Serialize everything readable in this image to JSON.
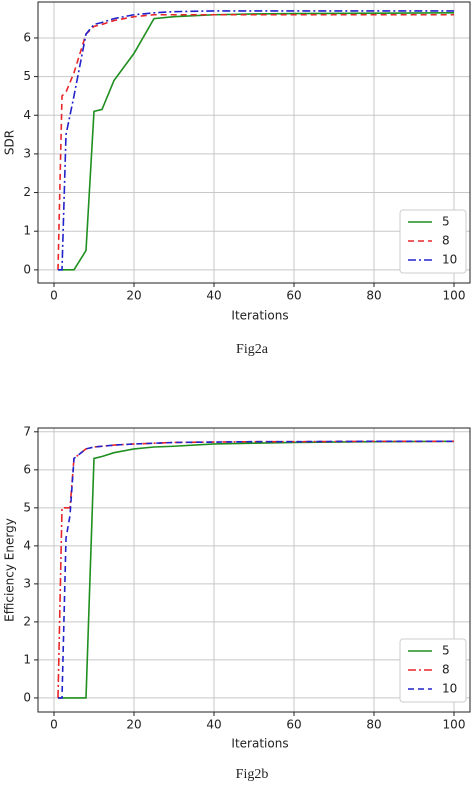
{
  "chart_data": [
    {
      "type": "line",
      "xlabel": "Iterations",
      "ylabel": "SDR",
      "caption": "Fig2a",
      "x": [
        1,
        2,
        3,
        5,
        8,
        10,
        12,
        15,
        20,
        25,
        30,
        40,
        50,
        60,
        80,
        100
      ],
      "series": [
        {
          "name": "5",
          "color": "#1f8f1f",
          "linestyle": "solid",
          "values": [
            0,
            0,
            0,
            0,
            0.5,
            4.1,
            4.15,
            4.9,
            5.6,
            6.5,
            6.55,
            6.6,
            6.62,
            6.63,
            6.64,
            6.65
          ]
        },
        {
          "name": "8",
          "color": "#e8262a",
          "linestyle": "dashed",
          "values": [
            0,
            4.5,
            4.6,
            5.1,
            6.1,
            6.3,
            6.35,
            6.45,
            6.55,
            6.6,
            6.6,
            6.6,
            6.6,
            6.6,
            6.6,
            6.6
          ]
        },
        {
          "name": "10",
          "color": "#2222cc",
          "linestyle": "dashdot",
          "values": [
            0,
            0,
            3.5,
            4.5,
            6.1,
            6.35,
            6.4,
            6.5,
            6.6,
            6.65,
            6.68,
            6.7,
            6.7,
            6.7,
            6.7,
            6.7
          ]
        }
      ],
      "xlim": [
        -4,
        104
      ],
      "xticks": [
        0,
        20,
        40,
        60,
        80,
        100
      ],
      "ylim": [
        -0.34,
        6.93
      ],
      "yticks": [
        0,
        1,
        2,
        3,
        4,
        5,
        6
      ],
      "grid": true,
      "legend": "lower right"
    },
    {
      "type": "line",
      "xlabel": "Iterations",
      "ylabel": "Efficiency Energy",
      "caption": "Fig2b",
      "x": [
        1,
        2,
        3,
        4,
        5,
        8,
        10,
        12,
        15,
        20,
        25,
        30,
        40,
        50,
        60,
        80,
        100
      ],
      "series": [
        {
          "name": "5",
          "color": "#1f8f1f",
          "linestyle": "solid",
          "values": [
            0,
            0,
            0,
            0,
            0,
            0,
            6.3,
            6.35,
            6.45,
            6.55,
            6.6,
            6.62,
            6.68,
            6.7,
            6.72,
            6.74,
            6.75
          ]
        },
        {
          "name": "8",
          "color": "#e8262a",
          "linestyle": "dashdot",
          "values": [
            0,
            5,
            5,
            5,
            6.3,
            6.55,
            6.6,
            6.62,
            6.65,
            6.68,
            6.7,
            6.72,
            6.73,
            6.74,
            6.74,
            6.75,
            6.75
          ]
        },
        {
          "name": "10",
          "color": "#2222cc",
          "linestyle": "dashed",
          "values": [
            0,
            0,
            4.2,
            4.8,
            6.3,
            6.55,
            6.6,
            6.62,
            6.65,
            6.68,
            6.7,
            6.72,
            6.73,
            6.74,
            6.74,
            6.75,
            6.75
          ]
        }
      ],
      "xlim": [
        -4,
        104
      ],
      "xticks": [
        0,
        20,
        40,
        60,
        80,
        100
      ],
      "ylim": [
        -0.37,
        7.1
      ],
      "yticks": [
        0,
        1,
        2,
        3,
        4,
        5,
        6,
        7
      ],
      "grid": true,
      "legend": "lower right"
    }
  ]
}
